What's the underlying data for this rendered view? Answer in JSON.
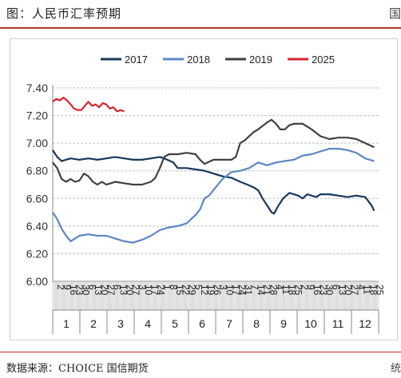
{
  "figure": {
    "title": "图：人民币汇率预期",
    "source": "数据来源：CHOICE 国信期货"
  },
  "chart_data": {
    "type": "line",
    "legend_position": "top",
    "grid": true,
    "ylim": [
      6.0,
      7.4
    ],
    "yticks": [
      "7.40",
      "7.20",
      "7.00",
      "6.80",
      "6.60",
      "6.40",
      "6.20",
      "6.00"
    ],
    "xlim": [
      0,
      365
    ],
    "day_labels": [
      {
        "day": 2,
        "label": "2"
      },
      {
        "day": 9,
        "label": "9"
      },
      {
        "day": 16,
        "label": "16"
      },
      {
        "day": 23,
        "label": "23"
      },
      {
        "day": 30,
        "label": "30"
      },
      {
        "day": 37,
        "label": "6"
      },
      {
        "day": 44,
        "label": "13"
      },
      {
        "day": 51,
        "label": "20"
      },
      {
        "day": 58,
        "label": "27"
      },
      {
        "day": 65,
        "label": "6"
      },
      {
        "day": 72,
        "label": "13"
      },
      {
        "day": 79,
        "label": "20"
      },
      {
        "day": 86,
        "label": "27"
      },
      {
        "day": 93,
        "label": "3"
      },
      {
        "day": 100,
        "label": "10"
      },
      {
        "day": 107,
        "label": "17"
      },
      {
        "day": 114,
        "label": "24"
      },
      {
        "day": 121,
        "label": "1"
      },
      {
        "day": 128,
        "label": "8"
      },
      {
        "day": 135,
        "label": "15"
      },
      {
        "day": 142,
        "label": "22"
      },
      {
        "day": 149,
        "label": "29"
      },
      {
        "day": 156,
        "label": "5"
      },
      {
        "day": 163,
        "label": "12"
      },
      {
        "day": 170,
        "label": "19"
      },
      {
        "day": 177,
        "label": "26"
      },
      {
        "day": 184,
        "label": "3"
      },
      {
        "day": 191,
        "label": "10"
      },
      {
        "day": 198,
        "label": "17"
      },
      {
        "day": 205,
        "label": "24"
      },
      {
        "day": 212,
        "label": "31"
      },
      {
        "day": 219,
        "label": "7"
      },
      {
        "day": 226,
        "label": "14"
      },
      {
        "day": 233,
        "label": "21"
      },
      {
        "day": 240,
        "label": "28"
      },
      {
        "day": 247,
        "label": "4"
      },
      {
        "day": 254,
        "label": "11"
      },
      {
        "day": 261,
        "label": "18"
      },
      {
        "day": 268,
        "label": "25"
      },
      {
        "day": 275,
        "label": "2"
      },
      {
        "day": 282,
        "label": "9"
      },
      {
        "day": 289,
        "label": "16"
      },
      {
        "day": 296,
        "label": "23"
      },
      {
        "day": 303,
        "label": "30"
      },
      {
        "day": 310,
        "label": "6"
      },
      {
        "day": 317,
        "label": "13"
      },
      {
        "day": 324,
        "label": "20"
      },
      {
        "day": 331,
        "label": "27"
      },
      {
        "day": 338,
        "label": "4"
      },
      {
        "day": 345,
        "label": "11"
      },
      {
        "day": 352,
        "label": "18"
      },
      {
        "day": 359,
        "label": "25"
      }
    ],
    "month_labels": [
      "1",
      "2",
      "3",
      "4",
      "5",
      "6",
      "7",
      "8",
      "9",
      "10",
      "11",
      "12"
    ],
    "series": [
      {
        "name": "2017",
        "color": "#17375e",
        "points": [
          [
            0,
            6.95
          ],
          [
            5,
            6.9
          ],
          [
            10,
            6.87
          ],
          [
            20,
            6.89
          ],
          [
            30,
            6.88
          ],
          [
            40,
            6.89
          ],
          [
            50,
            6.88
          ],
          [
            60,
            6.89
          ],
          [
            70,
            6.9
          ],
          [
            80,
            6.89
          ],
          [
            90,
            6.88
          ],
          [
            100,
            6.88
          ],
          [
            110,
            6.89
          ],
          [
            120,
            6.9
          ],
          [
            125,
            6.89
          ],
          [
            135,
            6.86
          ],
          [
            140,
            6.82
          ],
          [
            150,
            6.82
          ],
          [
            160,
            6.81
          ],
          [
            170,
            6.8
          ],
          [
            180,
            6.78
          ],
          [
            190,
            6.76
          ],
          [
            200,
            6.75
          ],
          [
            210,
            6.72
          ],
          [
            218,
            6.7
          ],
          [
            225,
            6.68
          ],
          [
            230,
            6.66
          ],
          [
            235,
            6.6
          ],
          [
            240,
            6.55
          ],
          [
            245,
            6.5
          ],
          [
            248,
            6.49
          ],
          [
            252,
            6.54
          ],
          [
            258,
            6.6
          ],
          [
            265,
            6.64
          ],
          [
            270,
            6.63
          ],
          [
            275,
            6.62
          ],
          [
            280,
            6.6
          ],
          [
            285,
            6.63
          ],
          [
            290,
            6.62
          ],
          [
            295,
            6.61
          ],
          [
            300,
            6.63
          ],
          [
            310,
            6.63
          ],
          [
            320,
            6.62
          ],
          [
            330,
            6.61
          ],
          [
            340,
            6.62
          ],
          [
            350,
            6.61
          ],
          [
            357,
            6.55
          ],
          [
            360,
            6.51
          ]
        ]
      },
      {
        "name": "2018",
        "color": "#5b87c5",
        "points": [
          [
            0,
            6.5
          ],
          [
            5,
            6.45
          ],
          [
            10,
            6.38
          ],
          [
            15,
            6.33
          ],
          [
            20,
            6.29
          ],
          [
            25,
            6.31
          ],
          [
            30,
            6.33
          ],
          [
            40,
            6.34
          ],
          [
            50,
            6.33
          ],
          [
            60,
            6.33
          ],
          [
            70,
            6.31
          ],
          [
            80,
            6.29
          ],
          [
            90,
            6.28
          ],
          [
            100,
            6.3
          ],
          [
            110,
            6.33
          ],
          [
            120,
            6.37
          ],
          [
            130,
            6.39
          ],
          [
            140,
            6.4
          ],
          [
            150,
            6.42
          ],
          [
            160,
            6.48
          ],
          [
            165,
            6.52
          ],
          [
            170,
            6.6
          ],
          [
            175,
            6.62
          ],
          [
            180,
            6.66
          ],
          [
            190,
            6.74
          ],
          [
            200,
            6.79
          ],
          [
            210,
            6.8
          ],
          [
            220,
            6.82
          ],
          [
            230,
            6.86
          ],
          [
            240,
            6.84
          ],
          [
            250,
            6.86
          ],
          [
            260,
            6.87
          ],
          [
            270,
            6.88
          ],
          [
            280,
            6.91
          ],
          [
            290,
            6.92
          ],
          [
            300,
            6.94
          ],
          [
            310,
            6.96
          ],
          [
            320,
            6.96
          ],
          [
            330,
            6.95
          ],
          [
            340,
            6.93
          ],
          [
            350,
            6.89
          ],
          [
            355,
            6.88
          ],
          [
            360,
            6.87
          ]
        ]
      },
      {
        "name": "2019",
        "color": "#404040",
        "points": [
          [
            0,
            6.86
          ],
          [
            5,
            6.82
          ],
          [
            10,
            6.74
          ],
          [
            15,
            6.72
          ],
          [
            20,
            6.74
          ],
          [
            25,
            6.72
          ],
          [
            30,
            6.73
          ],
          [
            35,
            6.78
          ],
          [
            40,
            6.76
          ],
          [
            45,
            6.72
          ],
          [
            50,
            6.7
          ],
          [
            55,
            6.72
          ],
          [
            60,
            6.7
          ],
          [
            65,
            6.71
          ],
          [
            70,
            6.72
          ],
          [
            80,
            6.71
          ],
          [
            90,
            6.7
          ],
          [
            100,
            6.7
          ],
          [
            110,
            6.72
          ],
          [
            115,
            6.75
          ],
          [
            120,
            6.82
          ],
          [
            125,
            6.9
          ],
          [
            130,
            6.92
          ],
          [
            140,
            6.92
          ],
          [
            150,
            6.93
          ],
          [
            160,
            6.92
          ],
          [
            165,
            6.88
          ],
          [
            170,
            6.85
          ],
          [
            180,
            6.88
          ],
          [
            190,
            6.88
          ],
          [
            200,
            6.88
          ],
          [
            205,
            6.9
          ],
          [
            210,
            7.0
          ],
          [
            215,
            7.02
          ],
          [
            220,
            7.05
          ],
          [
            225,
            7.08
          ],
          [
            230,
            7.1
          ],
          [
            240,
            7.15
          ],
          [
            245,
            7.17
          ],
          [
            250,
            7.14
          ],
          [
            255,
            7.1
          ],
          [
            260,
            7.1
          ],
          [
            265,
            7.13
          ],
          [
            270,
            7.14
          ],
          [
            280,
            7.14
          ],
          [
            290,
            7.1
          ],
          [
            300,
            7.05
          ],
          [
            310,
            7.03
          ],
          [
            320,
            7.04
          ],
          [
            330,
            7.04
          ],
          [
            340,
            7.03
          ],
          [
            350,
            7.0
          ],
          [
            360,
            6.97
          ]
        ]
      },
      {
        "name": "2025",
        "color": "#d7242c",
        "points": [
          [
            0,
            7.3
          ],
          [
            4,
            7.32
          ],
          [
            8,
            7.31
          ],
          [
            12,
            7.33
          ],
          [
            16,
            7.31
          ],
          [
            20,
            7.28
          ],
          [
            24,
            7.25
          ],
          [
            28,
            7.24
          ],
          [
            32,
            7.24
          ],
          [
            36,
            7.27
          ],
          [
            40,
            7.3
          ],
          [
            44,
            7.27
          ],
          [
            48,
            7.28
          ],
          [
            52,
            7.26
          ],
          [
            56,
            7.29
          ],
          [
            60,
            7.28
          ],
          [
            64,
            7.25
          ],
          [
            68,
            7.26
          ],
          [
            72,
            7.23
          ],
          [
            76,
            7.24
          ],
          [
            80,
            7.23
          ]
        ]
      }
    ]
  }
}
